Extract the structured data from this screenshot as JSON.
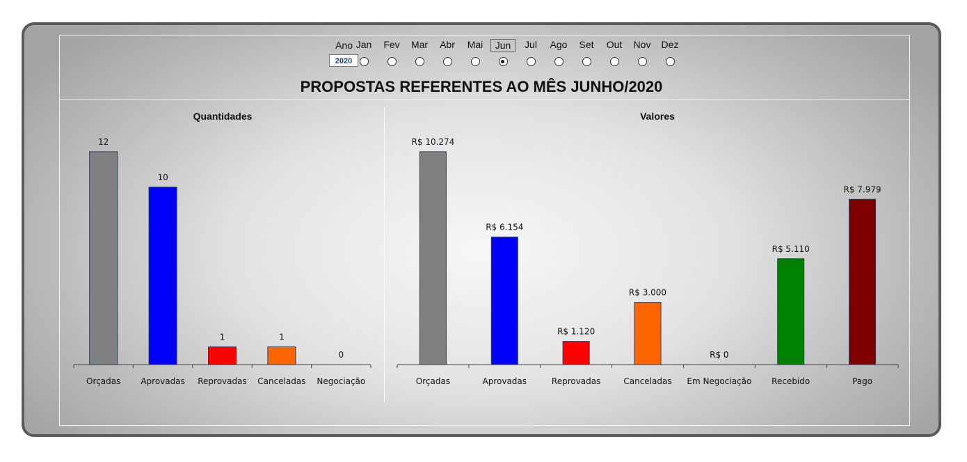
{
  "selector": {
    "year_label": "Ano",
    "year_value": "2020",
    "months": [
      "Jan",
      "Fev",
      "Mar",
      "Abr",
      "Mai",
      "Jun",
      "Jul",
      "Ago",
      "Set",
      "Out",
      "Nov",
      "Dez"
    ],
    "selected_month": "Jun"
  },
  "title": "PROPOSTAS REFERENTES AO MÊS JUNHO/2020",
  "chart_data": [
    {
      "type": "bar",
      "title": "Quantidades",
      "categories": [
        "Orçadas",
        "Aprovadas",
        "Reprovadas",
        "Canceladas",
        "Negociação"
      ],
      "values": [
        12,
        10,
        1,
        1,
        0
      ],
      "data_labels": [
        "12",
        "10",
        "1",
        "1",
        "0"
      ],
      "colors": [
        "#808080",
        "#0000ff",
        "#ff0000",
        "#ff6600",
        "#bfbfbf"
      ],
      "ylim": [
        0,
        12
      ],
      "grid": false
    },
    {
      "type": "bar",
      "title": "Valores",
      "categories": [
        "Orçadas",
        "Aprovadas",
        "Reprovadas",
        "Canceladas",
        "Em Negociação",
        "Recebido",
        "Pago"
      ],
      "values": [
        10274,
        6154,
        1120,
        3000,
        0,
        5110,
        7979
      ],
      "data_labels": [
        "R$ 10.274",
        "R$ 6.154",
        "R$ 1.120",
        "R$ 3.000",
        "R$ 0",
        "R$ 5.110",
        "R$ 7.979"
      ],
      "colors": [
        "#808080",
        "#0000ff",
        "#ff0000",
        "#ff6600",
        "#bfbfbf",
        "#008000",
        "#800000"
      ],
      "ylim": [
        0,
        10274
      ],
      "grid": false
    }
  ]
}
